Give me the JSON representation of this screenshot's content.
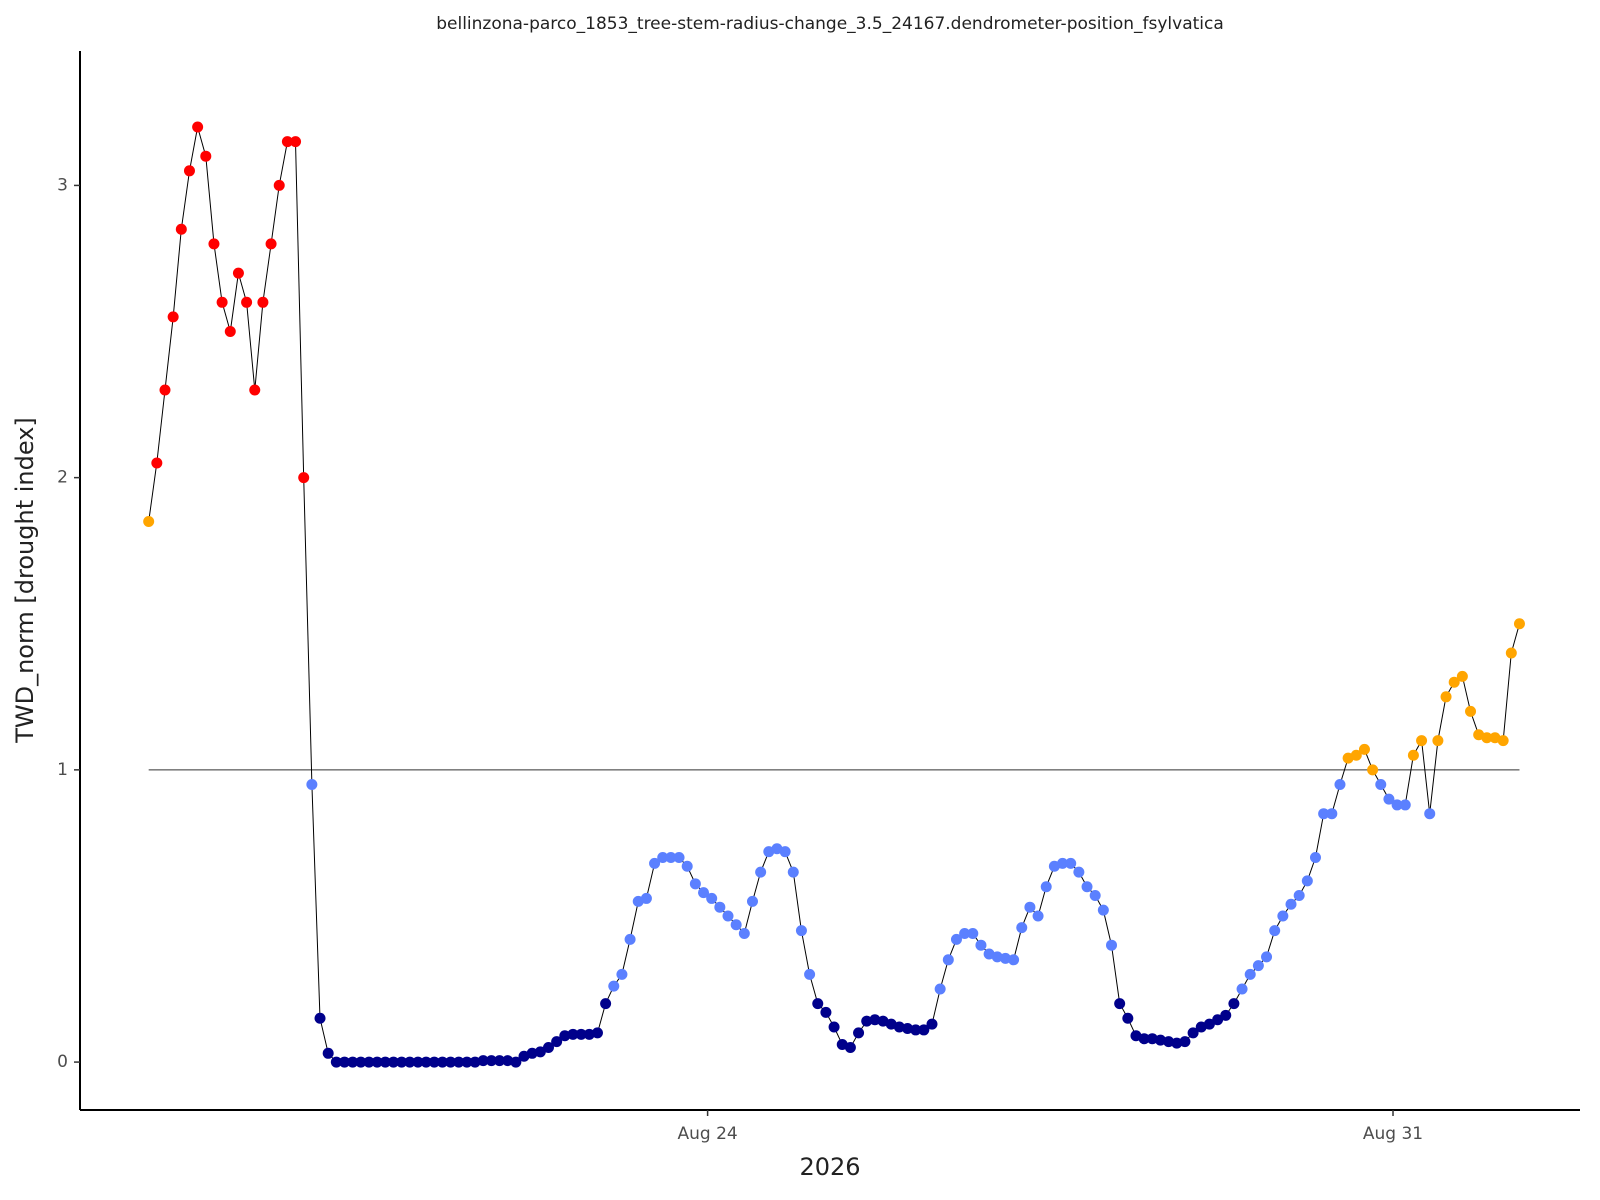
{
  "chart_data": {
    "type": "scatter-line",
    "title": "bellinzona-parco_1853_tree-stem-radius-change_3.5_24167.dendrometer-position_fsylvatica",
    "x_label": "2026",
    "y_label": "TWD_norm [drought index]",
    "xlim": [
      "2026-08-17 14:10",
      "2026-09-01 21:50"
    ],
    "xticks": [
      {
        "value": "2026-08-24 00:00",
        "label": "Aug 24"
      },
      {
        "value": "2026-08-31 00:00",
        "label": "Aug 31"
      }
    ],
    "ylim": [
      -0.164,
      3.46
    ],
    "yticks": [
      0,
      1,
      2,
      3
    ],
    "hline": 1,
    "hline_color": "#808080",
    "line_color": "#000000",
    "color_breaks": [
      0.25,
      1,
      2
    ],
    "point_colors": [
      "#00008b",
      "#5b80ff",
      "#ffa500",
      "#ff0000"
    ],
    "x": [
      "2026-08-18 07:00",
      "2026-08-18 09:00",
      "2026-08-18 11:00",
      "2026-08-18 13:00",
      "2026-08-18 15:00",
      "2026-08-18 17:00",
      "2026-08-18 19:00",
      "2026-08-18 21:00",
      "2026-08-18 23:00",
      "2026-08-19 01:00",
      "2026-08-19 03:00",
      "2026-08-19 05:00",
      "2026-08-19 07:00",
      "2026-08-19 09:00",
      "2026-08-19 11:00",
      "2026-08-19 13:00",
      "2026-08-19 15:00",
      "2026-08-19 17:00",
      "2026-08-19 19:00",
      "2026-08-19 21:00",
      "2026-08-19 23:00",
      "2026-08-20 01:00",
      "2026-08-20 03:00",
      "2026-08-20 05:00",
      "2026-08-20 07:00",
      "2026-08-20 09:00",
      "2026-08-20 11:00",
      "2026-08-20 13:00",
      "2026-08-20 15:00",
      "2026-08-20 17:00",
      "2026-08-20 19:00",
      "2026-08-20 21:00",
      "2026-08-20 23:00",
      "2026-08-21 01:00",
      "2026-08-21 03:00",
      "2026-08-21 05:00",
      "2026-08-21 07:00",
      "2026-08-21 09:00",
      "2026-08-21 11:00",
      "2026-08-21 13:00",
      "2026-08-21 15:00",
      "2026-08-21 17:00",
      "2026-08-21 19:00",
      "2026-08-21 21:00",
      "2026-08-21 23:00",
      "2026-08-22 01:00",
      "2026-08-22 03:00",
      "2026-08-22 05:00",
      "2026-08-22 07:00",
      "2026-08-22 09:00",
      "2026-08-22 11:00",
      "2026-08-22 13:00",
      "2026-08-22 15:00",
      "2026-08-22 17:00",
      "2026-08-22 19:00",
      "2026-08-22 21:00",
      "2026-08-22 23:00",
      "2026-08-23 01:00",
      "2026-08-23 03:00",
      "2026-08-23 05:00",
      "2026-08-23 07:00",
      "2026-08-23 09:00",
      "2026-08-23 11:00",
      "2026-08-23 13:00",
      "2026-08-23 15:00",
      "2026-08-23 17:00",
      "2026-08-23 19:00",
      "2026-08-23 21:00",
      "2026-08-23 23:00",
      "2026-08-24 01:00",
      "2026-08-24 03:00",
      "2026-08-24 05:00",
      "2026-08-24 07:00",
      "2026-08-24 09:00",
      "2026-08-24 11:00",
      "2026-08-24 13:00",
      "2026-08-24 15:00",
      "2026-08-24 17:00",
      "2026-08-24 19:00",
      "2026-08-24 21:00",
      "2026-08-24 23:00",
      "2026-08-25 01:00",
      "2026-08-25 03:00",
      "2026-08-25 05:00",
      "2026-08-25 07:00",
      "2026-08-25 09:00",
      "2026-08-25 11:00",
      "2026-08-25 13:00",
      "2026-08-25 15:00",
      "2026-08-25 17:00",
      "2026-08-25 19:00",
      "2026-08-25 21:00",
      "2026-08-25 23:00",
      "2026-08-26 01:00",
      "2026-08-26 03:00",
      "2026-08-26 05:00",
      "2026-08-26 07:00",
      "2026-08-26 09:00",
      "2026-08-26 11:00",
      "2026-08-26 13:00",
      "2026-08-26 15:00",
      "2026-08-26 17:00",
      "2026-08-26 19:00",
      "2026-08-26 21:00",
      "2026-08-26 23:00",
      "2026-08-27 01:00",
      "2026-08-27 03:00",
      "2026-08-27 05:00",
      "2026-08-27 07:00",
      "2026-08-27 09:00",
      "2026-08-27 11:00",
      "2026-08-27 13:00",
      "2026-08-27 15:00",
      "2026-08-27 17:00",
      "2026-08-27 19:00",
      "2026-08-27 21:00",
      "2026-08-27 23:00",
      "2026-08-28 01:00",
      "2026-08-28 03:00",
      "2026-08-28 05:00",
      "2026-08-28 07:00",
      "2026-08-28 09:00",
      "2026-08-28 11:00",
      "2026-08-28 13:00",
      "2026-08-28 15:00",
      "2026-08-28 17:00",
      "2026-08-28 19:00",
      "2026-08-28 21:00",
      "2026-08-28 23:00",
      "2026-08-29 01:00",
      "2026-08-29 03:00",
      "2026-08-29 05:00",
      "2026-08-29 07:00",
      "2026-08-29 09:00",
      "2026-08-29 11:00",
      "2026-08-29 13:00",
      "2026-08-29 15:00",
      "2026-08-29 17:00",
      "2026-08-29 19:00",
      "2026-08-29 21:00",
      "2026-08-29 23:00",
      "2026-08-30 01:00",
      "2026-08-30 03:00",
      "2026-08-30 05:00",
      "2026-08-30 07:00",
      "2026-08-30 09:00",
      "2026-08-30 11:00",
      "2026-08-30 13:00",
      "2026-08-30 15:00",
      "2026-08-30 17:00",
      "2026-08-30 19:00",
      "2026-08-30 21:00",
      "2026-08-30 23:00",
      "2026-08-31 01:00",
      "2026-08-31 03:00",
      "2026-08-31 05:00",
      "2026-08-31 07:00",
      "2026-08-31 09:00",
      "2026-08-31 11:00",
      "2026-08-31 13:00",
      "2026-08-31 15:00",
      "2026-08-31 17:00",
      "2026-08-31 19:00",
      "2026-08-31 21:00",
      "2026-08-31 23:00",
      "2026-09-01 01:00",
      "2026-09-01 03:00",
      "2026-09-01 05:00",
      "2026-09-01 07:00"
    ],
    "values": [
      1.85,
      2.05,
      2.3,
      2.55,
      2.85,
      3.05,
      3.2,
      3.1,
      2.8,
      2.6,
      2.5,
      2.7,
      2.6,
      2.3,
      2.6,
      2.8,
      3.0,
      3.15,
      3.15,
      2.0,
      0.95,
      0.15,
      0.03,
      0,
      0,
      0,
      0,
      0,
      0,
      0,
      0,
      0,
      0,
      0,
      0,
      0,
      0,
      0,
      0,
      0,
      0,
      0.005,
      0.005,
      0.005,
      0.005,
      0,
      0.02,
      0.03,
      0.035,
      0.05,
      0.07,
      0.09,
      0.095,
      0.095,
      0.095,
      0.1,
      0.2,
      0.26,
      0.3,
      0.42,
      0.55,
      0.56,
      0.68,
      0.7,
      0.7,
      0.7,
      0.67,
      0.61,
      0.58,
      0.56,
      0.53,
      0.5,
      0.47,
      0.44,
      0.55,
      0.65,
      0.72,
      0.73,
      0.72,
      0.65,
      0.45,
      0.3,
      0.2,
      0.17,
      0.12,
      0.06,
      0.05,
      0.1,
      0.14,
      0.145,
      0.14,
      0.13,
      0.12,
      0.115,
      0.11,
      0.11,
      0.13,
      0.25,
      0.35,
      0.42,
      0.44,
      0.44,
      0.4,
      0.37,
      0.36,
      0.355,
      0.35,
      0.46,
      0.53,
      0.5,
      0.6,
      0.67,
      0.68,
      0.68,
      0.65,
      0.6,
      0.57,
      0.52,
      0.4,
      0.2,
      0.15,
      0.09,
      0.08,
      0.08,
      0.075,
      0.07,
      0.065,
      0.07,
      0.1,
      0.12,
      0.13,
      0.145,
      0.16,
      0.2,
      0.25,
      0.3,
      0.33,
      0.36,
      0.45,
      0.5,
      0.54,
      0.57,
      0.62,
      0.7,
      0.85,
      0.85,
      0.95,
      1.04,
      1.05,
      1.07,
      1.0,
      0.95,
      0.9,
      0.88,
      0.88,
      1.05,
      1.1,
      0.85,
      1.1,
      1.25,
      1.3,
      1.32,
      1.2,
      1.12,
      1.11,
      1.11,
      1.1,
      1.4,
      1.5
    ]
  }
}
